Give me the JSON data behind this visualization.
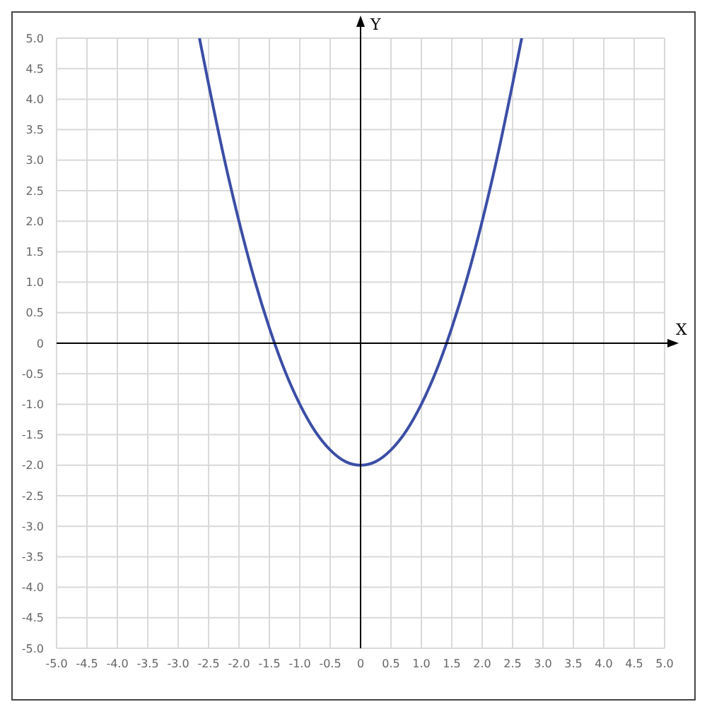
{
  "chart_data": {
    "type": "line",
    "xlabel": "X",
    "ylabel": "Y",
    "x": [
      -2.65,
      -2.5,
      -2.25,
      -2,
      -1.75,
      -1.5,
      -1.25,
      -1,
      -0.75,
      -0.5,
      -0.25,
      0,
      0.25,
      0.5,
      0.75,
      1,
      1.25,
      1.5,
      1.75,
      2,
      2.25,
      2.5,
      2.65
    ],
    "series": [
      {
        "color": "#3b4ea6",
        "values": [
          5.0,
          4.25,
          3.06,
          2.0,
          1.06,
          0.25,
          -0.44,
          -1.0,
          -1.44,
          -1.75,
          -1.94,
          -2.0,
          -1.94,
          -1.75,
          -1.44,
          -1.0,
          -0.44,
          0.25,
          1.06,
          2.0,
          3.06,
          4.25,
          5.0
        ]
      }
    ],
    "xlim": [
      -5,
      5
    ],
    "ylim": [
      -5,
      5
    ],
    "xticks": [
      {
        "value": -5,
        "label": "-5.0"
      },
      {
        "value": -4.5,
        "label": "-4.5"
      },
      {
        "value": -4,
        "label": "-4.0"
      },
      {
        "value": -3.5,
        "label": "-3.5"
      },
      {
        "value": -3,
        "label": "-3.0"
      },
      {
        "value": -2.5,
        "label": "-2.5"
      },
      {
        "value": -2,
        "label": "-2.0"
      },
      {
        "value": -1.5,
        "label": "-1.5"
      },
      {
        "value": -1,
        "label": "-1.0"
      },
      {
        "value": -0.5,
        "label": "-0.5"
      },
      0,
      {
        "value": 0.5,
        "label": "0.5"
      },
      {
        "value": 1,
        "label": "1.0"
      },
      {
        "value": 1.5,
        "label": "1.5"
      },
      {
        "value": 2,
        "label": "2.0"
      },
      {
        "value": 2.5,
        "label": "2.5"
      },
      {
        "value": 3,
        "label": "3.0"
      },
      {
        "value": 3.5,
        "label": "3.5"
      },
      {
        "value": 4,
        "label": "4.0"
      },
      {
        "value": 4.5,
        "label": "4.5"
      },
      {
        "value": 5,
        "label": "5.0"
      }
    ],
    "yticks": [
      {
        "value": -5,
        "label": "-5.0"
      },
      {
        "value": -4.5,
        "label": "-4.5"
      },
      {
        "value": -4,
        "label": "-4.0"
      },
      {
        "value": -3.5,
        "label": "-3.5"
      },
      {
        "value": -3,
        "label": "-3.0"
      },
      {
        "value": -2.5,
        "label": "-2.5"
      },
      {
        "value": -2,
        "label": "-2.0"
      },
      {
        "value": -1.5,
        "label": "-1.5"
      },
      {
        "value": -1,
        "label": "-1.0"
      },
      {
        "value": -0.5,
        "label": "-0.5"
      },
      0,
      {
        "value": 0.5,
        "label": "0.5"
      },
      {
        "value": 1,
        "label": "1.0"
      },
      {
        "value": 1.5,
        "label": "1.5"
      },
      {
        "value": 2,
        "label": "2.0"
      },
      {
        "value": 2.5,
        "label": "2.5"
      },
      {
        "value": 3,
        "label": "3.0"
      },
      {
        "value": 3.5,
        "label": "3.5"
      },
      {
        "value": 4,
        "label": "4.0"
      },
      {
        "value": 4.5,
        "label": "4.5"
      },
      {
        "value": 5,
        "label": "5.0"
      }
    ],
    "grid": true,
    "marker": "none",
    "line_style": "solid"
  }
}
